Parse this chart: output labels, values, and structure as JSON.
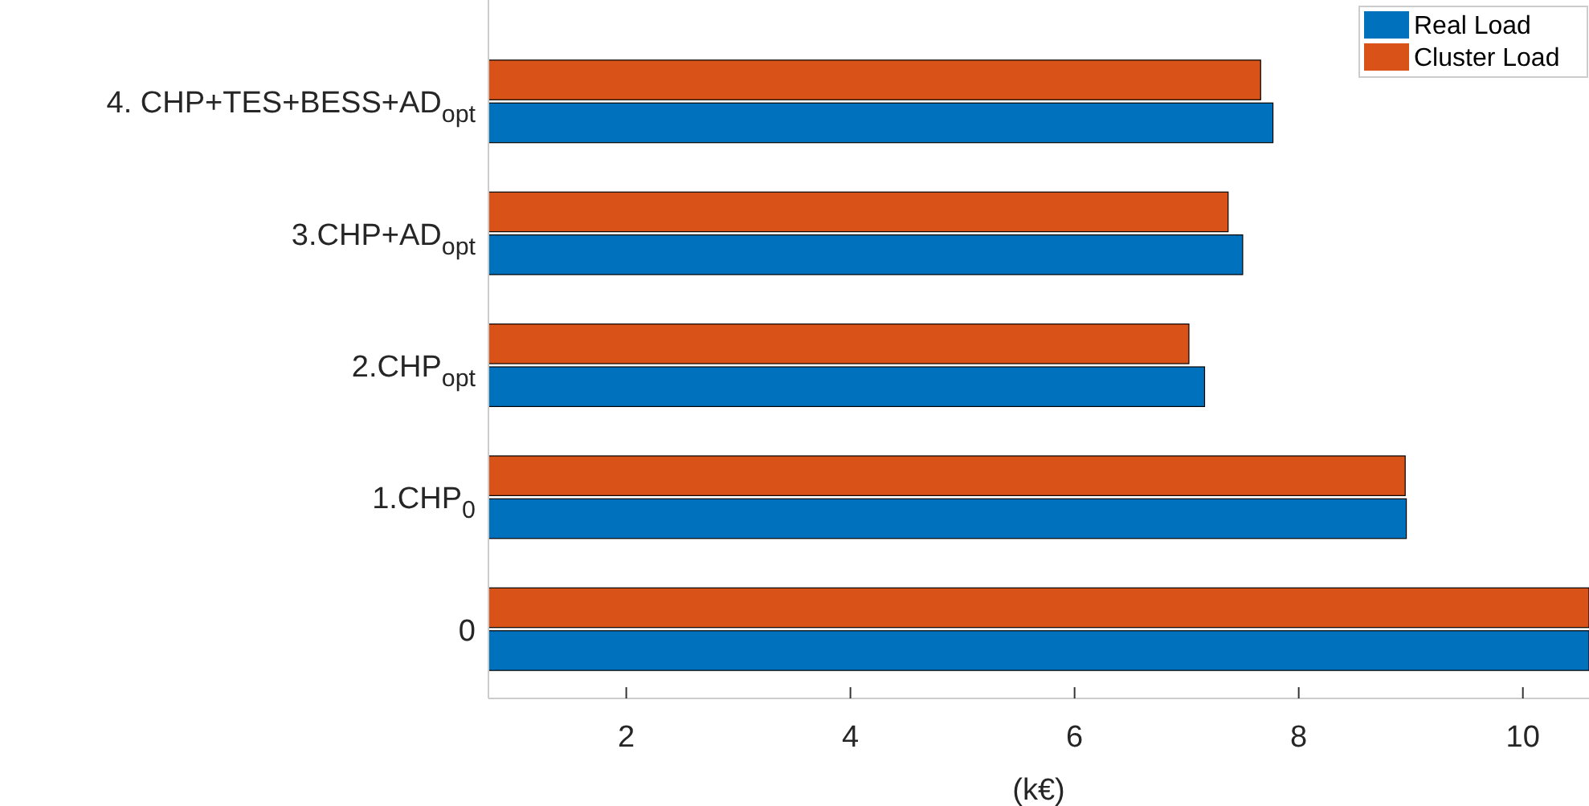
{
  "chart_data": {
    "type": "bar",
    "orientation": "horizontal",
    "xlabel": "(k€)",
    "categories": [
      "4. CHP+TES+BESS+AD$_{opt}$",
      "3.CHP+AD$_{opt}$",
      "2.CHP$_{opt}$",
      "1.CHP$_{0}$",
      "0"
    ],
    "series": [
      {
        "name": "Real Load",
        "color": "#0072bd",
        "values": [
          7.77,
          7.5,
          7.16,
          8.96,
          10.59
        ]
      },
      {
        "name": "Cluster Load",
        "color": "#d95319",
        "values": [
          7.66,
          7.37,
          7.02,
          8.95,
          10.59
        ]
      }
    ],
    "xlim": [
      0.77,
      10.59
    ],
    "xticks": [
      2,
      4,
      6,
      8,
      10
    ],
    "grid": false,
    "legend": "top right"
  }
}
